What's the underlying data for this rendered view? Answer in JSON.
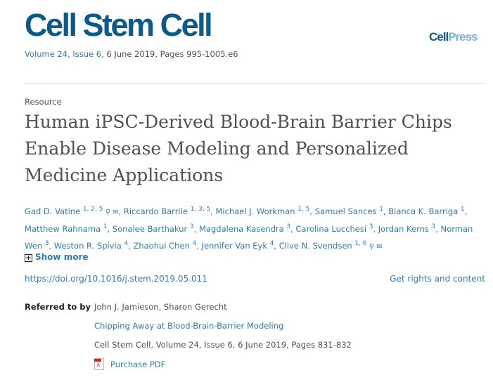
{
  "journal": {
    "name": "Cell Stem Cell",
    "volume": "Volume 24, Issue 6",
    "date_pages": ", 6 June 2019, Pages 995-1005.e6",
    "publisher_a": "Cell",
    "publisher_b": "Press"
  },
  "article": {
    "type": "Resource",
    "title": "Human iPSC-Derived Blood-Brain Barrier Chips Enable Disease Modeling and Personalized Medicine Applications"
  },
  "authors": [
    {
      "name": "Gad D. Vatine",
      "sup": "1, 2, 5",
      "icons": true
    },
    {
      "name": "Riccardo Barrile",
      "sup": "1, 3, 5"
    },
    {
      "name": "Michael J. Workman",
      "sup": "1, 5"
    },
    {
      "name": "Samuel Sances",
      "sup": "1"
    },
    {
      "name": "Bianca K. Barriga",
      "sup": "1"
    },
    {
      "name": "Matthew Rahnama",
      "sup": "1"
    },
    {
      "name": "Sonalee Barthakur",
      "sup": "3"
    },
    {
      "name": "Magdalena Kasendra",
      "sup": "3"
    },
    {
      "name": "Carolina Lucchesi",
      "sup": "3"
    },
    {
      "name": "Jordan Kerns",
      "sup": "3"
    },
    {
      "name": "Norman Wen",
      "sup": "3"
    },
    {
      "name": "Weston R. Spivia",
      "sup": "4"
    },
    {
      "name": "Zhaohui Chen",
      "sup": "4"
    },
    {
      "name": "Jennifer Van Eyk",
      "sup": "4"
    },
    {
      "name": "Clive N. Svendsen",
      "sup": "1, 6",
      "icons": true
    }
  ],
  "show_more": "Show more",
  "doi": "https://doi.org/10.1016/j.stem.2019.05.011",
  "rights": "Get rights and content",
  "referred": {
    "label": "Referred to by",
    "authors": "John J. Jamieson, Sharon Gerecht",
    "title": "Chipping Away at Blood-Brain-Barrier Modeling",
    "source": "Cell Stem Cell, Volume 24, Issue 6, 6 June 2019, Pages 831-832",
    "pdf": "Purchase PDF"
  },
  "colors": {
    "brand": "#0c5a8a",
    "link": "#2e7bb4",
    "text": "#505050"
  }
}
